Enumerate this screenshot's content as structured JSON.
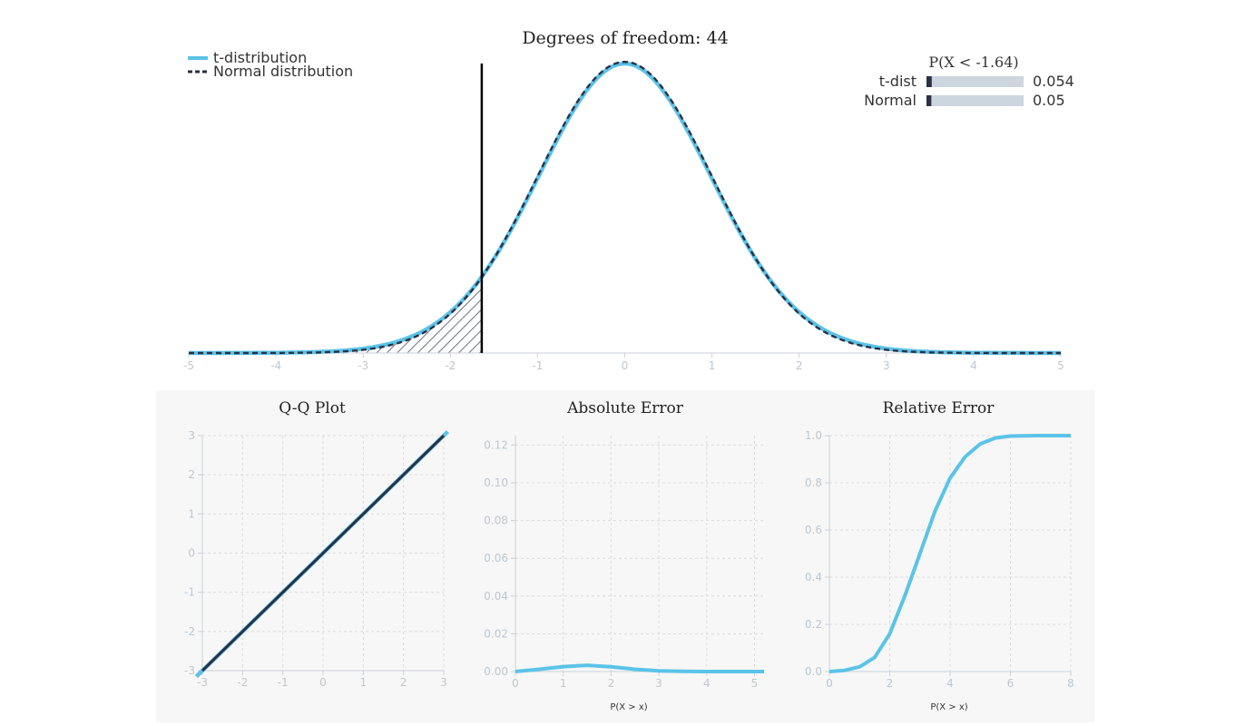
{
  "colors": {
    "t": "#5bc3e8",
    "normal": "#2b3044",
    "bar_bg": "#ccd6de",
    "tick": "#bcc8d2"
  },
  "prob_panel": {
    "title": "P(X < -1.64)",
    "rows": [
      {
        "label": "t-dist",
        "value": "0.054",
        "fraction": 0.054
      },
      {
        "label": "Normal",
        "value": "0.05",
        "fraction": 0.05
      }
    ]
  },
  "chart_data": [
    {
      "type": "line",
      "title": "Degrees of freedom: 44",
      "df": 44,
      "threshold": -1.64,
      "xlim": [
        -5,
        5
      ],
      "xticks": [
        -5,
        -4,
        -3,
        -2,
        -1,
        0,
        1,
        2,
        3,
        4,
        5
      ],
      "legend_position": "top-left",
      "series": [
        {
          "name": "t-distribution",
          "style": "solid"
        },
        {
          "name": "Normal distribution",
          "style": "dashed"
        }
      ]
    },
    {
      "type": "line",
      "title": "Q-Q Plot",
      "xlim": [
        -3,
        3
      ],
      "ylim": [
        -3,
        3
      ],
      "xticks": [
        -3,
        -2,
        -1,
        0,
        1,
        2,
        3
      ],
      "yticks": [
        -3,
        -2,
        -1,
        0,
        1,
        2,
        3
      ],
      "grid": true,
      "series": [
        {
          "role": "reference",
          "x": [
            -3,
            3
          ],
          "y": [
            -3,
            3
          ]
        },
        {
          "role": "t-quantiles",
          "x": [
            -3.15,
            3.1
          ],
          "y": [
            -3.15,
            3.1
          ]
        }
      ]
    },
    {
      "type": "line",
      "title": "Absolute Error",
      "xlabel": "P(X > x)",
      "xlim": [
        0,
        5.2
      ],
      "ylim": [
        0,
        0.125
      ],
      "xticks": [
        0,
        1,
        2,
        3,
        4,
        5
      ],
      "yticks": [
        "0.00",
        "0.02",
        "0.04",
        "0.06",
        "0.08",
        "0.10",
        "0.12"
      ],
      "grid": true,
      "x": [
        0,
        0.5,
        1,
        1.5,
        2,
        2.5,
        3,
        3.5,
        4,
        4.5,
        5,
        5.2
      ],
      "y": [
        0,
        0.0012,
        0.0026,
        0.0033,
        0.0025,
        0.0012,
        0.0004,
        0.0001,
        0,
        0,
        0,
        0
      ]
    },
    {
      "type": "line",
      "title": "Relative Error",
      "xlabel": "P(X > x)",
      "xlim": [
        0,
        8
      ],
      "ylim": [
        0,
        1
      ],
      "xticks": [
        0,
        2,
        4,
        6,
        8
      ],
      "yticks": [
        "0.0",
        "0.2",
        "0.4",
        "0.6",
        "0.8",
        "1.0"
      ],
      "grid": true,
      "x": [
        0,
        0.5,
        1,
        1.5,
        2,
        2.5,
        3,
        3.5,
        4,
        4.5,
        5,
        5.5,
        6,
        7,
        8
      ],
      "y": [
        0,
        0.005,
        0.02,
        0.06,
        0.16,
        0.32,
        0.5,
        0.68,
        0.82,
        0.91,
        0.965,
        0.99,
        0.998,
        1.0,
        1.0
      ]
    }
  ]
}
